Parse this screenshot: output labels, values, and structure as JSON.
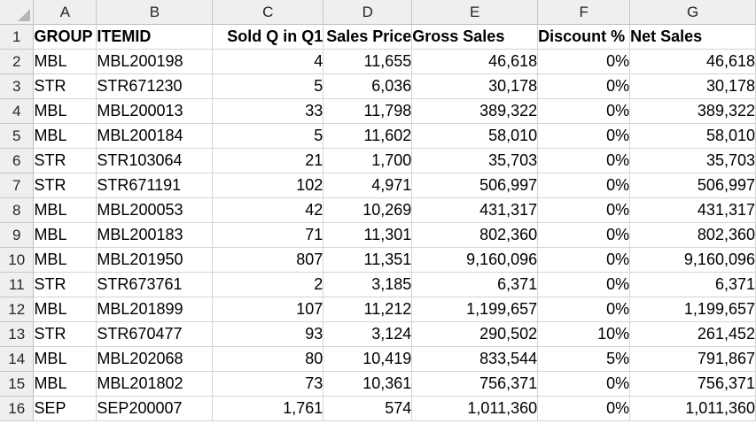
{
  "column_letters": [
    "A",
    "B",
    "C",
    "D",
    "E",
    "F",
    "G"
  ],
  "row_numbers": [
    "1",
    "2",
    "3",
    "4",
    "5",
    "6",
    "7",
    "8",
    "9",
    "10",
    "11",
    "12",
    "13",
    "14",
    "15",
    "16"
  ],
  "headers": [
    "GROUP",
    "ITEMID",
    "Sold Q in Q1",
    "Sales Price",
    "Gross Sales",
    "Discount %",
    "Net Sales"
  ],
  "rows": [
    [
      "MBL",
      "MBL200198",
      "4",
      "11,655",
      "46,618",
      "0%",
      "46,618"
    ],
    [
      "STR",
      "STR671230",
      "5",
      "6,036",
      "30,178",
      "0%",
      "30,178"
    ],
    [
      "MBL",
      "MBL200013",
      "33",
      "11,798",
      "389,322",
      "0%",
      "389,322"
    ],
    [
      "MBL",
      "MBL200184",
      "5",
      "11,602",
      "58,010",
      "0%",
      "58,010"
    ],
    [
      "STR",
      "STR103064",
      "21",
      "1,700",
      "35,703",
      "0%",
      "35,703"
    ],
    [
      "STR",
      "STR671191",
      "102",
      "4,971",
      "506,997",
      "0%",
      "506,997"
    ],
    [
      "MBL",
      "MBL200053",
      "42",
      "10,269",
      "431,317",
      "0%",
      "431,317"
    ],
    [
      "MBL",
      "MBL200183",
      "71",
      "11,301",
      "802,360",
      "0%",
      "802,360"
    ],
    [
      "MBL",
      "MBL201950",
      "807",
      "11,351",
      "9,160,096",
      "0%",
      "9,160,096"
    ],
    [
      "STR",
      "STR673761",
      "2",
      "3,185",
      "6,371",
      "0%",
      "6,371"
    ],
    [
      "MBL",
      "MBL201899",
      "107",
      "11,212",
      "1,199,657",
      "0%",
      "1,199,657"
    ],
    [
      "STR",
      "STR670477",
      "93",
      "3,124",
      "290,502",
      "10%",
      "261,452"
    ],
    [
      "MBL",
      "MBL202068",
      "80",
      "10,419",
      "833,544",
      "5%",
      "791,867"
    ],
    [
      "MBL",
      "MBL201802",
      "73",
      "10,361",
      "756,371",
      "0%",
      "756,371"
    ],
    [
      "SEP",
      "SEP200007",
      "1,761",
      "574",
      "1,011,360",
      "0%",
      "1,011,360"
    ]
  ]
}
